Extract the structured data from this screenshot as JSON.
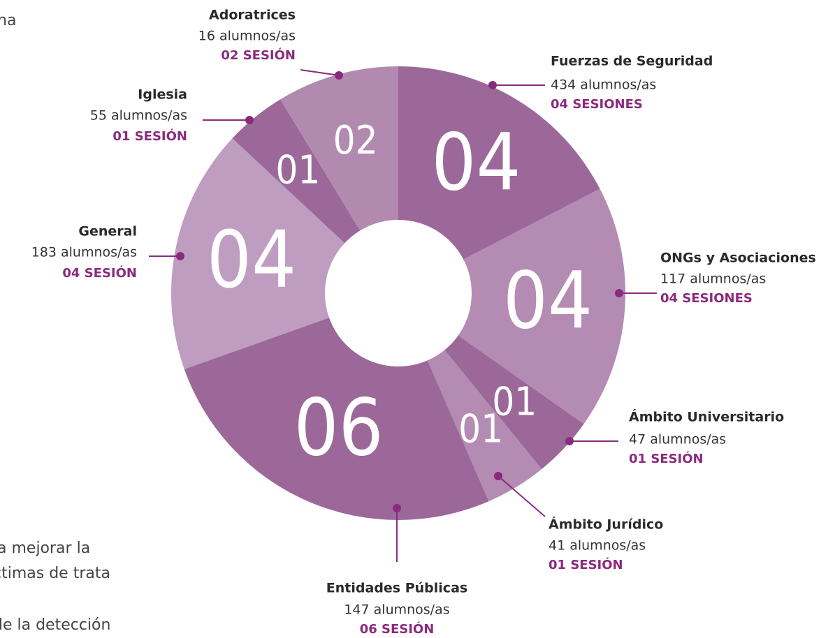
{
  "chart_data": {
    "type": "donut",
    "categories": [
      "Fuerzas de Seguridad",
      "ONGs y Asociaciones",
      "Ámbito Universitario",
      "Ámbito Jurídico",
      "Entidades Públicas",
      "General",
      "Iglesia",
      "Adoratrices"
    ],
    "values": [
      4,
      4,
      1,
      1,
      6,
      4,
      1,
      2
    ],
    "value_labels": [
      "04",
      "04",
      "01",
      "01",
      "06",
      "04",
      "01",
      "02"
    ],
    "student_labels": [
      "434  alumnos/as",
      "117 alumnos/as",
      "47  alumnos/as",
      "41 alumnos/as",
      "147 alumnos/as",
      "183 alumnos/as",
      "55 alumnos/as",
      "16 alumnos/as"
    ],
    "session_labels": [
      "04 SESIONES",
      "04 SESIONES",
      "01 SESIÓN",
      "01 SESIÓN",
      "06 SESIÓN",
      "04 SESIÓN",
      "01 SESIÓN",
      "02 SESIÓN"
    ],
    "colors": [
      "#9c6899",
      "#b48bb3",
      "#9c6899",
      "#b48bb3",
      "#9c6899",
      "#bf9dc0",
      "#9c6899",
      "#b28ab0"
    ]
  },
  "page_text": [
    "na",
    "a mejorar la",
    "ctimas de trata",
    "de la detección"
  ]
}
